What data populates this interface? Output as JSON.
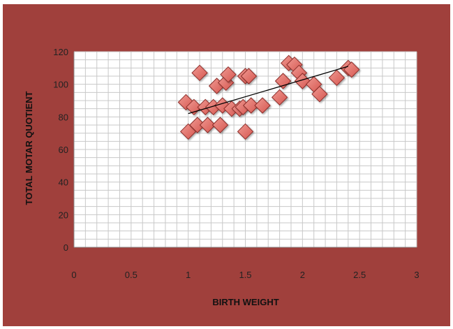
{
  "colors": {
    "background": "#a0403c",
    "plot_area": "#ffffff",
    "grid": "#c8c8c8",
    "marker_fill": "#d6564f",
    "marker_highlight": "#ef9a93",
    "marker_edge": "#8c2d29",
    "trendline": "#000000"
  },
  "chart_data": {
    "type": "scatter",
    "title": "",
    "xlabel": "BIRTH WEIGHT",
    "ylabel": "TOTAL MOTAR QUOTIENT",
    "xlim": [
      0,
      3
    ],
    "ylim": [
      0,
      120
    ],
    "x_ticks": [
      "0",
      "0.5",
      "1",
      "1.5",
      "2",
      "2.5",
      "3"
    ],
    "y_ticks": [
      "0",
      "20",
      "40",
      "60",
      "80",
      "100",
      "120"
    ],
    "grid": true,
    "legend": "none",
    "marker": "diamond",
    "points": [
      {
        "x": 0.98,
        "y": 89
      },
      {
        "x": 1.0,
        "y": 71
      },
      {
        "x": 1.05,
        "y": 86
      },
      {
        "x": 1.08,
        "y": 75
      },
      {
        "x": 1.1,
        "y": 107
      },
      {
        "x": 1.15,
        "y": 86
      },
      {
        "x": 1.17,
        "y": 75
      },
      {
        "x": 1.22,
        "y": 86
      },
      {
        "x": 1.25,
        "y": 99
      },
      {
        "x": 1.28,
        "y": 75
      },
      {
        "x": 1.3,
        "y": 87
      },
      {
        "x": 1.33,
        "y": 101
      },
      {
        "x": 1.35,
        "y": 106
      },
      {
        "x": 1.38,
        "y": 85
      },
      {
        "x": 1.45,
        "y": 85
      },
      {
        "x": 1.48,
        "y": 86
      },
      {
        "x": 1.5,
        "y": 71
      },
      {
        "x": 1.5,
        "y": 105
      },
      {
        "x": 1.53,
        "y": 105
      },
      {
        "x": 1.55,
        "y": 87
      },
      {
        "x": 1.65,
        "y": 87
      },
      {
        "x": 1.8,
        "y": 92
      },
      {
        "x": 1.83,
        "y": 102
      },
      {
        "x": 1.88,
        "y": 113
      },
      {
        "x": 1.93,
        "y": 112
      },
      {
        "x": 1.97,
        "y": 107
      },
      {
        "x": 2.0,
        "y": 102
      },
      {
        "x": 2.1,
        "y": 100
      },
      {
        "x": 2.15,
        "y": 94
      },
      {
        "x": 2.3,
        "y": 104
      },
      {
        "x": 2.4,
        "y": 110
      },
      {
        "x": 2.43,
        "y": 109
      }
    ],
    "trendline": {
      "type": "linear",
      "x": [
        1.0,
        2.4
      ],
      "y": [
        82,
        111
      ]
    }
  }
}
